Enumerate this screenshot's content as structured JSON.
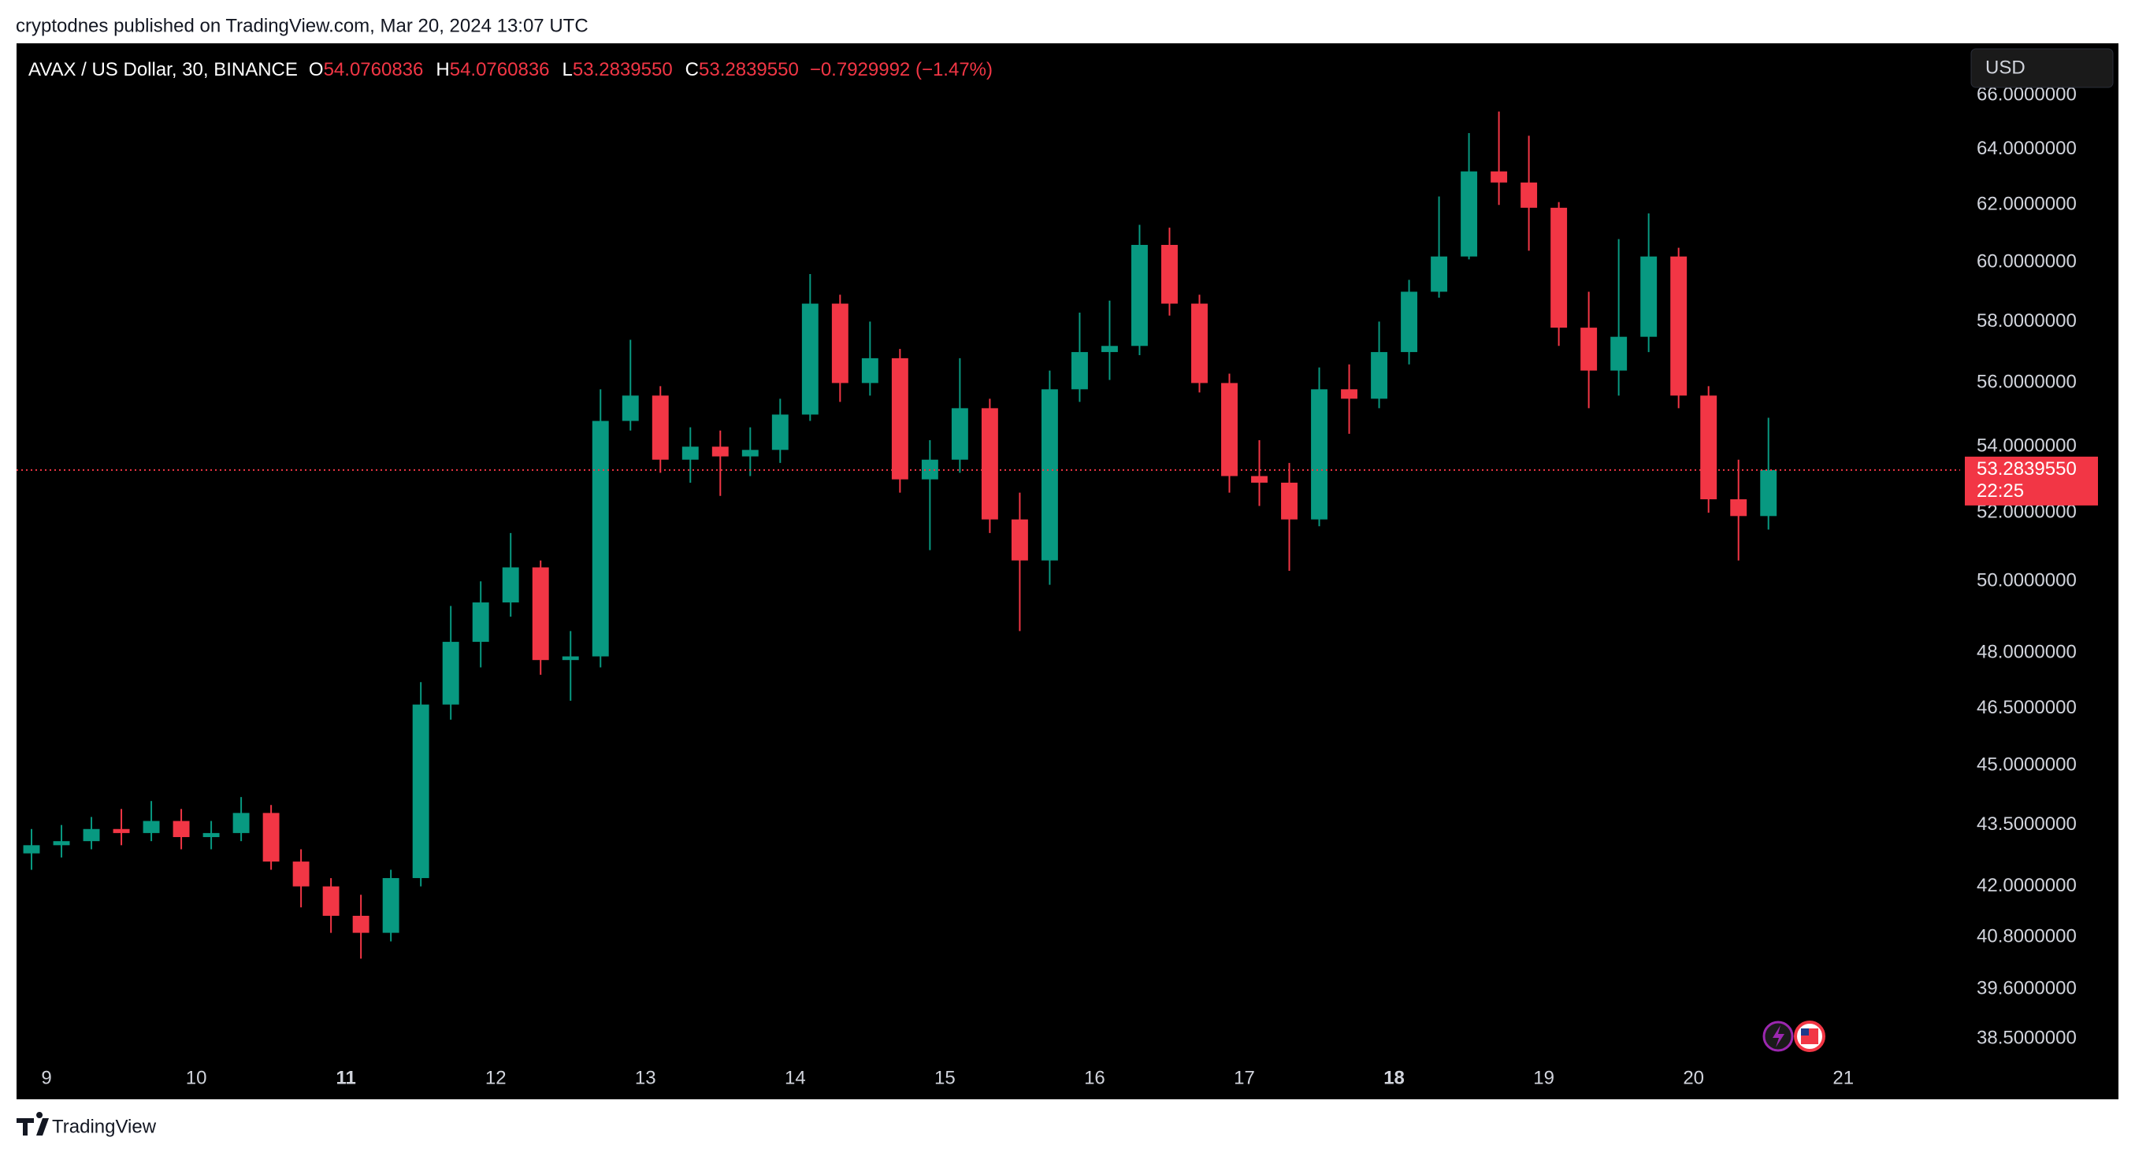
{
  "header": {
    "published": "cryptodnes published on TradingView.com, Mar 20, 2024 13:07 UTC",
    "symbol": "AVAX / US Dollar, 30, BINANCE",
    "ohlc": [
      {
        "label": "O",
        "value": "54.0760836"
      },
      {
        "label": "H",
        "value": "54.0760836"
      },
      {
        "label": "L",
        "value": "53.2839550"
      },
      {
        "label": "C",
        "value": "53.2839550"
      }
    ],
    "change": "−0.7929992 (−1.47%)",
    "currency_button": "USD"
  },
  "footer": {
    "brand": "TradingView"
  },
  "chart_data": {
    "type": "candlestick",
    "up_color": "#089981",
    "down_color": "#f23645",
    "log_scale": true,
    "x": [
      8.9,
      9.1,
      9.3,
      9.5,
      9.7,
      9.9,
      10.1,
      10.3,
      10.5,
      10.7,
      10.9,
      11.1,
      11.3,
      11.5,
      11.7,
      11.9,
      12.1,
      12.3,
      12.5,
      12.7,
      12.9,
      13.1,
      13.3,
      13.5,
      13.7,
      13.9,
      14.1,
      14.3,
      14.5,
      14.7,
      14.9,
      15.1,
      15.3,
      15.5,
      15.7,
      15.9,
      16.1,
      16.3,
      16.5,
      16.7,
      16.9,
      17.1,
      17.3,
      17.5,
      17.7,
      17.9,
      18.1,
      18.3,
      18.5,
      18.7,
      18.9,
      19.1,
      19.3,
      19.5,
      19.7,
      19.9,
      20.1,
      20.3,
      20.5
    ],
    "open": [
      42.8,
      43.0,
      43.1,
      43.4,
      43.3,
      43.6,
      43.2,
      43.3,
      43.8,
      42.6,
      42.0,
      41.3,
      40.9,
      42.2,
      46.6,
      48.3,
      49.4,
      50.4,
      47.8,
      47.9,
      54.8,
      55.6,
      53.6,
      54.0,
      53.7,
      53.9,
      55.0,
      58.6,
      56.0,
      56.8,
      53.0,
      53.6,
      55.2,
      51.8,
      50.6,
      55.8,
      57.0,
      57.2,
      60.6,
      58.6,
      56.0,
      53.1,
      52.9,
      51.8,
      55.8,
      55.5,
      57.0,
      59.0,
      60.2,
      63.2,
      62.8,
      61.9,
      57.8,
      56.4,
      57.5,
      60.2,
      55.6,
      52.4,
      51.9
    ],
    "high": [
      43.4,
      43.5,
      43.7,
      43.9,
      44.1,
      43.9,
      43.6,
      44.2,
      44.0,
      42.9,
      42.2,
      41.8,
      42.4,
      47.2,
      49.3,
      50.0,
      51.4,
      50.6,
      48.6,
      55.8,
      57.4,
      55.9,
      54.6,
      54.5,
      54.6,
      55.5,
      59.6,
      58.9,
      58.0,
      57.1,
      54.2,
      56.8,
      55.5,
      52.6,
      56.4,
      58.3,
      58.7,
      61.3,
      61.2,
      58.9,
      56.3,
      54.2,
      53.5,
      56.5,
      56.6,
      58.0,
      59.4,
      62.3,
      64.6,
      65.4,
      64.5,
      62.1,
      59.0,
      60.8,
      61.7,
      60.5,
      55.9,
      53.6,
      54.9
    ],
    "low": [
      42.4,
      42.7,
      42.9,
      43.0,
      43.1,
      42.9,
      42.9,
      43.1,
      42.4,
      41.5,
      40.9,
      40.3,
      40.7,
      42.0,
      46.2,
      47.6,
      49.0,
      47.4,
      46.7,
      47.6,
      54.5,
      53.2,
      52.9,
      52.5,
      53.1,
      53.5,
      54.8,
      55.4,
      55.6,
      52.6,
      50.9,
      53.2,
      51.4,
      48.6,
      49.9,
      55.4,
      56.1,
      56.9,
      58.2,
      55.7,
      52.6,
      52.2,
      50.3,
      51.6,
      54.4,
      55.2,
      56.6,
      58.8,
      60.1,
      62.0,
      60.4,
      57.2,
      55.2,
      55.6,
      57.0,
      55.2,
      52.0,
      50.6,
      51.5
    ],
    "close": [
      43.0,
      43.1,
      43.4,
      43.3,
      43.6,
      43.2,
      43.3,
      43.8,
      42.6,
      42.0,
      41.3,
      40.9,
      42.2,
      46.6,
      48.3,
      49.4,
      50.4,
      47.8,
      47.9,
      54.8,
      55.6,
      53.6,
      54.0,
      53.7,
      53.9,
      55.0,
      58.6,
      56.0,
      56.8,
      53.0,
      53.6,
      55.2,
      51.8,
      50.6,
      55.8,
      57.0,
      57.2,
      60.6,
      58.6,
      56.0,
      53.1,
      52.9,
      51.8,
      55.8,
      55.5,
      57.0,
      59.0,
      60.2,
      63.2,
      62.8,
      61.9,
      57.8,
      56.4,
      57.5,
      60.2,
      55.6,
      52.4,
      51.9,
      53.283955
    ],
    "xlim": [
      8.8,
      21.78
    ],
    "xticks": [
      9,
      10,
      11,
      12,
      13,
      14,
      15,
      16,
      17,
      18,
      19,
      20,
      21
    ],
    "xticks_bold": [
      11,
      18
    ],
    "ylim": [
      38.0,
      68.0
    ],
    "yticks": [
      {
        "value": 38.5,
        "label": "38.5000000"
      },
      {
        "value": 39.6,
        "label": "39.6000000"
      },
      {
        "value": 40.8,
        "label": "40.8000000"
      },
      {
        "value": 42,
        "label": "42.0000000"
      },
      {
        "value": 43.5,
        "label": "43.5000000"
      },
      {
        "value": 45,
        "label": "45.0000000"
      },
      {
        "value": 46.5,
        "label": "46.5000000"
      },
      {
        "value": 48,
        "label": "48.0000000"
      },
      {
        "value": 50,
        "label": "50.0000000"
      },
      {
        "value": 52,
        "label": "52.0000000"
      },
      {
        "value": 54,
        "label": "54.0000000"
      },
      {
        "value": 56,
        "label": "56.0000000"
      },
      {
        "value": 58,
        "label": "58.0000000"
      },
      {
        "value": 60,
        "label": "60.0000000"
      },
      {
        "value": 62,
        "label": "62.0000000"
      },
      {
        "value": 64,
        "label": "64.0000000"
      },
      {
        "value": 66,
        "label": "66.0000000"
      }
    ],
    "last_price": {
      "value": 53.283955,
      "label": "53.2839550"
    },
    "countdown": "22:25"
  }
}
